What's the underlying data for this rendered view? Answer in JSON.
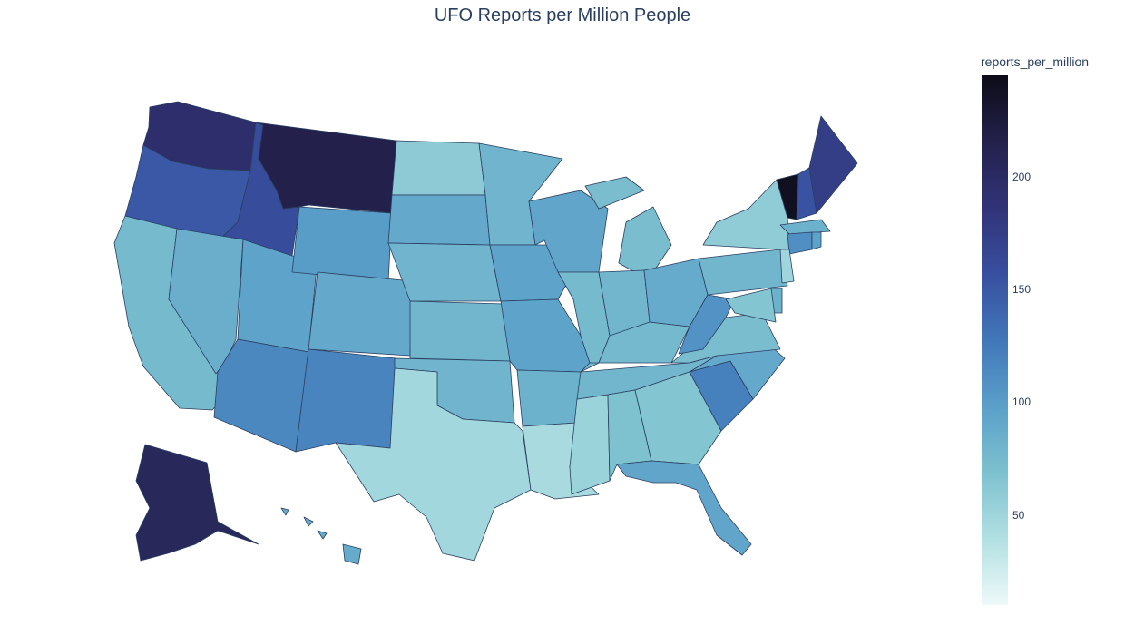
{
  "chart_data": {
    "type": "choropleth",
    "title": "UFO Reports per Million People",
    "colorbar": {
      "title": "reports_per_million",
      "range": [
        10,
        245
      ],
      "ticks": [
        50,
        100,
        150,
        200
      ],
      "colorscale": [
        "#eef9f9",
        "#b2e0e3",
        "#7dc1cf",
        "#5a9fc9",
        "#4177b9",
        "#384f9f",
        "#313378",
        "#23214b",
        "#0d0c18"
      ]
    },
    "states": [
      {
        "state": "WA",
        "value": 195
      },
      {
        "state": "OR",
        "value": 150
      },
      {
        "state": "ID",
        "value": 160
      },
      {
        "state": "MT",
        "value": 215
      },
      {
        "state": "CA",
        "value": 75
      },
      {
        "state": "NV",
        "value": 85
      },
      {
        "state": "UT",
        "value": 95
      },
      {
        "state": "AZ",
        "value": 115
      },
      {
        "state": "WY",
        "value": 100
      },
      {
        "state": "CO",
        "value": 90
      },
      {
        "state": "NM",
        "value": 118
      },
      {
        "state": "ND",
        "value": 60
      },
      {
        "state": "SD",
        "value": 90
      },
      {
        "state": "NE",
        "value": 80
      },
      {
        "state": "KS",
        "value": 78
      },
      {
        "state": "OK",
        "value": 80
      },
      {
        "state": "TX",
        "value": 48
      },
      {
        "state": "MN",
        "value": 80
      },
      {
        "state": "IA",
        "value": 95
      },
      {
        "state": "MO",
        "value": 95
      },
      {
        "state": "AR",
        "value": 82
      },
      {
        "state": "LA",
        "value": 45
      },
      {
        "state": "WI",
        "value": 92
      },
      {
        "state": "IL",
        "value": 75
      },
      {
        "state": "MS",
        "value": 52
      },
      {
        "state": "MI",
        "value": 72
      },
      {
        "state": "IN",
        "value": 78
      },
      {
        "state": "KY",
        "value": 76
      },
      {
        "state": "TN",
        "value": 78
      },
      {
        "state": "AL",
        "value": 68
      },
      {
        "state": "OH",
        "value": 88
      },
      {
        "state": "GA",
        "value": 65
      },
      {
        "state": "FL",
        "value": 92
      },
      {
        "state": "SC",
        "value": 120
      },
      {
        "state": "NC",
        "value": 90
      },
      {
        "state": "VA",
        "value": 72
      },
      {
        "state": "WV",
        "value": 108
      },
      {
        "state": "PA",
        "value": 78
      },
      {
        "state": "NY",
        "value": 58
      },
      {
        "state": "VT",
        "value": 240
      },
      {
        "state": "NH",
        "value": 155
      },
      {
        "state": "ME",
        "value": 175
      },
      {
        "state": "MA",
        "value": 82
      },
      {
        "state": "CT",
        "value": 110
      },
      {
        "state": "RI",
        "value": 95
      },
      {
        "state": "NJ",
        "value": 50
      },
      {
        "state": "DE",
        "value": 82
      },
      {
        "state": "MD",
        "value": 65
      },
      {
        "state": "AK",
        "value": 205
      },
      {
        "state": "HI",
        "value": 88
      }
    ]
  }
}
